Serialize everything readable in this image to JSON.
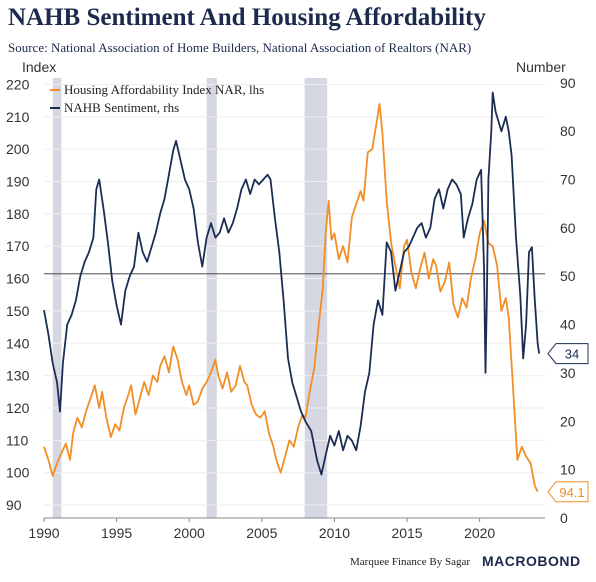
{
  "header": {
    "title": "NAHB Sentiment And Housing Affordability",
    "subtitle": "Source: National Association of Home Builders, National Association of Realtors (NAR)"
  },
  "footer": {
    "credit": "Marquee Finance By Sagar",
    "brand": "MACROBOND"
  },
  "colors": {
    "affordability": "#f28e24",
    "sentiment": "#1c2d55",
    "recession": "#d5d8e2",
    "grid": "#eeeeee",
    "axis_text": "#333333"
  },
  "chart_data": {
    "type": "line",
    "left_axis_label": "Index",
    "right_axis_label": "Number",
    "left_ylim": [
      86,
      222
    ],
    "right_ylim": [
      0,
      91
    ],
    "xlim": [
      1990.0,
      2024.5
    ],
    "left_ticks": [
      "220",
      "210",
      "200",
      "190",
      "180",
      "170",
      "160",
      "150",
      "140",
      "130",
      "120",
      "110",
      "100",
      "90"
    ],
    "right_ticks": [
      "90",
      "80",
      "70",
      "60",
      "50",
      "40",
      "30",
      "20",
      "10",
      "0"
    ],
    "x_ticks": [
      "1990",
      "1995",
      "2000",
      "2005",
      "2010",
      "2015",
      "2020"
    ],
    "recessions": [
      [
        1990.6,
        1991.2
      ],
      [
        2001.2,
        2001.9
      ],
      [
        2007.95,
        2009.5
      ]
    ],
    "reference_line_right": 50.5,
    "legend": [
      "Housing Affordability Index NAR, lhs",
      "NAHB Sentiment, rhs"
    ],
    "series": [
      {
        "name": "Housing Affordability Index NAR, lhs",
        "axis": "left",
        "points": [
          [
            1990.0,
            108
          ],
          [
            1990.3,
            104
          ],
          [
            1990.6,
            99
          ],
          [
            1990.9,
            103
          ],
          [
            1991.2,
            106
          ],
          [
            1991.5,
            109
          ],
          [
            1991.8,
            104
          ],
          [
            1992.0,
            112
          ],
          [
            1992.3,
            117
          ],
          [
            1992.6,
            114
          ],
          [
            1992.9,
            119
          ],
          [
            1993.2,
            123
          ],
          [
            1993.5,
            127
          ],
          [
            1993.8,
            120
          ],
          [
            1994.0,
            125
          ],
          [
            1994.3,
            117
          ],
          [
            1994.6,
            111
          ],
          [
            1994.9,
            115
          ],
          [
            1995.2,
            113
          ],
          [
            1995.5,
            120
          ],
          [
            1995.8,
            124
          ],
          [
            1996.0,
            127
          ],
          [
            1996.3,
            118
          ],
          [
            1996.6,
            123
          ],
          [
            1996.9,
            128
          ],
          [
            1997.2,
            124
          ],
          [
            1997.5,
            130
          ],
          [
            1997.8,
            128
          ],
          [
            1998.0,
            133
          ],
          [
            1998.3,
            136
          ],
          [
            1998.6,
            131
          ],
          [
            1998.9,
            139
          ],
          [
            1999.2,
            135
          ],
          [
            1999.5,
            128
          ],
          [
            1999.8,
            124
          ],
          [
            2000.0,
            127
          ],
          [
            2000.3,
            121
          ],
          [
            2000.6,
            122
          ],
          [
            2000.9,
            126
          ],
          [
            2001.2,
            128
          ],
          [
            2001.5,
            131
          ],
          [
            2001.8,
            135
          ],
          [
            2002.0,
            130
          ],
          [
            2002.3,
            126
          ],
          [
            2002.6,
            131
          ],
          [
            2002.9,
            125
          ],
          [
            2003.2,
            127
          ],
          [
            2003.5,
            133
          ],
          [
            2003.8,
            128
          ],
          [
            2004.0,
            127
          ],
          [
            2004.3,
            121
          ],
          [
            2004.6,
            118
          ],
          [
            2004.9,
            117
          ],
          [
            2005.2,
            119
          ],
          [
            2005.5,
            112
          ],
          [
            2005.8,
            108
          ],
          [
            2006.0,
            104
          ],
          [
            2006.3,
            100
          ],
          [
            2006.6,
            105
          ],
          [
            2006.9,
            110
          ],
          [
            2007.2,
            108
          ],
          [
            2007.5,
            114
          ],
          [
            2007.8,
            118
          ],
          [
            2008.0,
            117
          ],
          [
            2008.3,
            125
          ],
          [
            2008.6,
            132
          ],
          [
            2008.9,
            145
          ],
          [
            2009.2,
            157
          ],
          [
            2009.4,
            174
          ],
          [
            2009.6,
            184
          ],
          [
            2009.8,
            172
          ],
          [
            2010.0,
            174
          ],
          [
            2010.3,
            166
          ],
          [
            2010.6,
            170
          ],
          [
            2010.9,
            165
          ],
          [
            2011.2,
            179
          ],
          [
            2011.5,
            183
          ],
          [
            2011.8,
            187
          ],
          [
            2012.0,
            184
          ],
          [
            2012.3,
            199
          ],
          [
            2012.6,
            200
          ],
          [
            2012.9,
            208
          ],
          [
            2013.1,
            214
          ],
          [
            2013.3,
            205
          ],
          [
            2013.6,
            184
          ],
          [
            2013.9,
            171
          ],
          [
            2014.2,
            164
          ],
          [
            2014.5,
            157
          ],
          [
            2014.8,
            170
          ],
          [
            2015.0,
            172
          ],
          [
            2015.3,
            162
          ],
          [
            2015.6,
            157
          ],
          [
            2015.9,
            163
          ],
          [
            2016.2,
            168
          ],
          [
            2016.5,
            160
          ],
          [
            2016.8,
            166
          ],
          [
            2017.0,
            164
          ],
          [
            2017.3,
            156
          ],
          [
            2017.6,
            159
          ],
          [
            2017.9,
            165
          ],
          [
            2018.2,
            152
          ],
          [
            2018.5,
            148
          ],
          [
            2018.8,
            154
          ],
          [
            2019.1,
            151
          ],
          [
            2019.4,
            160
          ],
          [
            2019.7,
            166
          ],
          [
            2020.0,
            174
          ],
          [
            2020.3,
            178
          ],
          [
            2020.6,
            171
          ],
          [
            2020.9,
            170
          ],
          [
            2021.2,
            164
          ],
          [
            2021.5,
            150
          ],
          [
            2021.8,
            154
          ],
          [
            2022.0,
            148
          ],
          [
            2022.3,
            126
          ],
          [
            2022.6,
            104
          ],
          [
            2022.9,
            108
          ],
          [
            2023.2,
            105
          ],
          [
            2023.5,
            103
          ],
          [
            2023.8,
            96
          ],
          [
            2024.0,
            94.1
          ]
        ]
      },
      {
        "name": "NAHB Sentiment, rhs",
        "axis": "right",
        "points": [
          [
            1990.0,
            43
          ],
          [
            1990.3,
            38
          ],
          [
            1990.6,
            32
          ],
          [
            1990.9,
            28
          ],
          [
            1991.1,
            22
          ],
          [
            1991.3,
            32
          ],
          [
            1991.6,
            40
          ],
          [
            1991.9,
            42
          ],
          [
            1992.2,
            45
          ],
          [
            1992.5,
            50
          ],
          [
            1992.8,
            53
          ],
          [
            1993.1,
            55
          ],
          [
            1993.4,
            58
          ],
          [
            1993.6,
            68
          ],
          [
            1993.8,
            70
          ],
          [
            1994.1,
            64
          ],
          [
            1994.4,
            57
          ],
          [
            1994.7,
            49
          ],
          [
            1995.0,
            44
          ],
          [
            1995.3,
            40
          ],
          [
            1995.6,
            47
          ],
          [
            1995.9,
            50
          ],
          [
            1996.2,
            52
          ],
          [
            1996.5,
            59
          ],
          [
            1996.8,
            55
          ],
          [
            1997.1,
            53
          ],
          [
            1997.4,
            56
          ],
          [
            1997.7,
            59
          ],
          [
            1998.0,
            63
          ],
          [
            1998.3,
            66
          ],
          [
            1998.6,
            71
          ],
          [
            1998.9,
            76
          ],
          [
            1999.1,
            78
          ],
          [
            1999.4,
            74
          ],
          [
            1999.7,
            70
          ],
          [
            2000.0,
            68
          ],
          [
            2000.3,
            64
          ],
          [
            2000.6,
            57
          ],
          [
            2000.9,
            52
          ],
          [
            2001.2,
            58
          ],
          [
            2001.5,
            61
          ],
          [
            2001.8,
            58
          ],
          [
            2002.1,
            59
          ],
          [
            2002.4,
            62
          ],
          [
            2002.7,
            59
          ],
          [
            2003.0,
            61
          ],
          [
            2003.3,
            64
          ],
          [
            2003.6,
            68
          ],
          [
            2003.9,
            70
          ],
          [
            2004.2,
            67
          ],
          [
            2004.5,
            70
          ],
          [
            2004.8,
            69
          ],
          [
            2005.1,
            70
          ],
          [
            2005.4,
            71
          ],
          [
            2005.6,
            70
          ],
          [
            2005.9,
            62
          ],
          [
            2006.2,
            55
          ],
          [
            2006.5,
            45
          ],
          [
            2006.8,
            33
          ],
          [
            2007.1,
            28
          ],
          [
            2007.4,
            25
          ],
          [
            2007.7,
            22
          ],
          [
            2008.0,
            20
          ],
          [
            2008.4,
            18
          ],
          [
            2008.8,
            12
          ],
          [
            2009.1,
            9
          ],
          [
            2009.4,
            13
          ],
          [
            2009.7,
            17
          ],
          [
            2010.0,
            15
          ],
          [
            2010.3,
            18
          ],
          [
            2010.6,
            14
          ],
          [
            2010.9,
            17
          ],
          [
            2011.2,
            16
          ],
          [
            2011.5,
            14
          ],
          [
            2011.8,
            19
          ],
          [
            2012.1,
            26
          ],
          [
            2012.4,
            30
          ],
          [
            2012.7,
            40
          ],
          [
            2013.0,
            45
          ],
          [
            2013.3,
            42
          ],
          [
            2013.6,
            57
          ],
          [
            2013.9,
            55
          ],
          [
            2014.2,
            47
          ],
          [
            2014.5,
            51
          ],
          [
            2014.8,
            55
          ],
          [
            2015.1,
            56
          ],
          [
            2015.4,
            58
          ],
          [
            2015.7,
            60
          ],
          [
            2016.0,
            61
          ],
          [
            2016.3,
            58
          ],
          [
            2016.6,
            60
          ],
          [
            2016.9,
            66
          ],
          [
            2017.2,
            68
          ],
          [
            2017.5,
            64
          ],
          [
            2017.8,
            68
          ],
          [
            2018.1,
            70
          ],
          [
            2018.4,
            69
          ],
          [
            2018.7,
            67
          ],
          [
            2018.9,
            58
          ],
          [
            2019.2,
            62
          ],
          [
            2019.5,
            65
          ],
          [
            2019.8,
            70
          ],
          [
            2020.1,
            72
          ],
          [
            2020.3,
            52
          ],
          [
            2020.4,
            30
          ],
          [
            2020.5,
            46
          ],
          [
            2020.6,
            70
          ],
          [
            2020.8,
            80
          ],
          [
            2020.9,
            88
          ],
          [
            2021.1,
            84
          ],
          [
            2021.3,
            82
          ],
          [
            2021.5,
            80
          ],
          [
            2021.8,
            83
          ],
          [
            2022.0,
            80
          ],
          [
            2022.2,
            75
          ],
          [
            2022.5,
            58
          ],
          [
            2022.8,
            46
          ],
          [
            2023.0,
            33
          ],
          [
            2023.2,
            40
          ],
          [
            2023.4,
            55
          ],
          [
            2023.6,
            56
          ],
          [
            2023.8,
            45
          ],
          [
            2024.0,
            36
          ],
          [
            2024.1,
            34
          ]
        ]
      }
    ],
    "end_labels": {
      "affordability": "94.1",
      "sentiment": "34"
    }
  }
}
